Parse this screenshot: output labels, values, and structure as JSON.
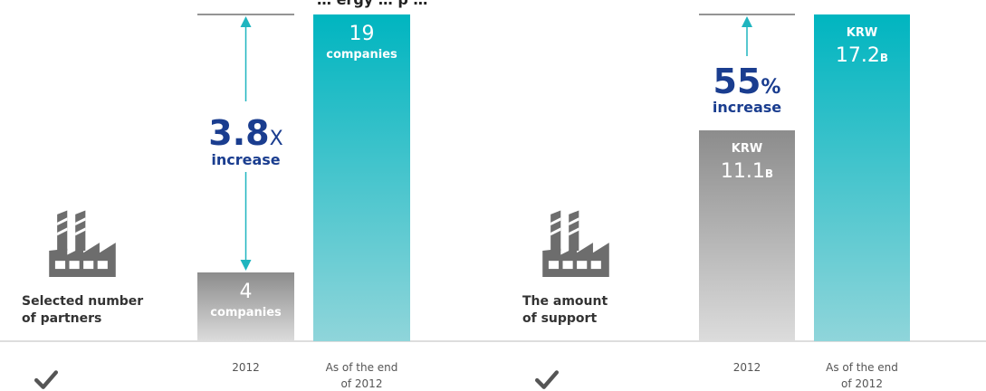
{
  "page_title": "… ergy … p …",
  "colors": {
    "teal_top": "#00b5c0",
    "teal_bottom": "#8fd5da",
    "gray_top": "#8c8c8c",
    "gray_bottom": "#dcdcdc",
    "accent_blue": "#1a3d8f",
    "arrow_teal": "#1fb5bf",
    "icon_gray": "#6d6d6d"
  },
  "chart_data": [
    {
      "type": "bar",
      "category_label": "Selected number of partners",
      "category_label_lines": [
        "Selected number",
        "of partners"
      ],
      "categories": [
        "2012",
        "As of the end of 2012"
      ],
      "category_lines": [
        [
          "2012"
        ],
        [
          "As of the end",
          "of 2012"
        ]
      ],
      "values": [
        4,
        19
      ],
      "value_labels": [
        {
          "prefix": "",
          "number": "4",
          "suffix": "",
          "unit": "companies"
        },
        {
          "prefix": "",
          "number": "19",
          "suffix": "",
          "unit": "companies"
        }
      ],
      "increase": {
        "value": "3.8",
        "symbol": "X",
        "text": "increase"
      },
      "icons": [
        "factory-icon",
        "check-icon"
      ]
    },
    {
      "type": "bar",
      "category_label": "The amount of support",
      "category_label_lines": [
        "The amount",
        "of support"
      ],
      "categories": [
        "2012",
        "As of the end of 2012"
      ],
      "category_lines": [
        [
          "2012"
        ],
        [
          "As of the end",
          "of 2012"
        ]
      ],
      "values": [
        11.1,
        17.2
      ],
      "value_labels": [
        {
          "prefix": "KRW",
          "number": "11.1",
          "suffix": "B",
          "unit": ""
        },
        {
          "prefix": "KRW",
          "number": "17.2",
          "suffix": "B",
          "unit": ""
        }
      ],
      "increase": {
        "value": "55",
        "symbol": "%",
        "text": "increase"
      },
      "icons": [
        "factory-icon",
        "check-icon"
      ]
    }
  ]
}
